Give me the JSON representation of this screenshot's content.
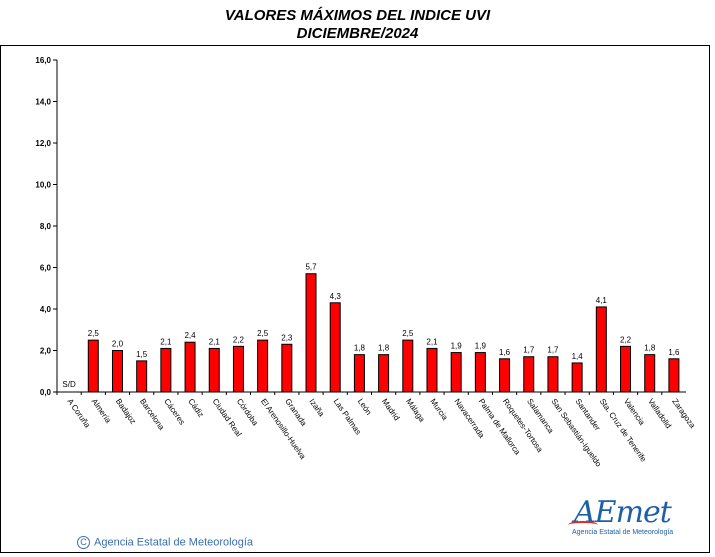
{
  "header": {
    "title_line1": "VALORES MÁXIMOS DEL INDICE UVI",
    "title_line2": "DICIEMBRE/2024"
  },
  "footer": {
    "copyright_symbol": "C",
    "agency": "Agencia Estatal de Meteorología",
    "logo_text": "AEmet",
    "logo_subtitle": "Agencia Estatal de Meteorología"
  },
  "chart_data": {
    "type": "bar",
    "title": "VALORES MÁXIMOS DEL INDICE UVI DICIEMBRE/2024",
    "xlabel": "",
    "ylabel": "",
    "ylim": [
      0,
      16
    ],
    "yticks": [
      "0,0",
      "2,0",
      "4,0",
      "6,0",
      "8,0",
      "10,0",
      "12,0",
      "14,0",
      "16,0"
    ],
    "grid": false,
    "bar_color": "#ff0000",
    "categories": [
      "A Coruña",
      "Almería",
      "Badajoz",
      "Barcelona",
      "Cáceres",
      "Cádiz",
      "Ciudad Real",
      "Córdoba",
      "El Arenosillo-Huelva",
      "Granada",
      "Izaña",
      "Las Palmas",
      "León",
      "Madrid",
      "Málaga",
      "Murcia",
      "Navacerrada",
      "Palma de Mallorca",
      "Roquetes-Tortosa",
      "Salamanca",
      "San Sebastián-Igueldo",
      "Santander",
      "Sta. Cruz de Tenerife",
      "Valencia",
      "Valladolid",
      "Zaragoza"
    ],
    "values": [
      null,
      2.5,
      2.0,
      1.5,
      2.1,
      2.4,
      2.1,
      2.2,
      2.5,
      2.3,
      5.7,
      4.3,
      1.8,
      1.8,
      2.5,
      2.1,
      1.9,
      1.9,
      1.6,
      1.7,
      1.7,
      1.4,
      4.1,
      2.2,
      1.8,
      1.6
    ],
    "labels": [
      "S/D",
      "2,5",
      "2,0",
      "1,5",
      "2,1",
      "2,4",
      "2,1",
      "2,2",
      "2,5",
      "2,3",
      "5,7",
      "4,3",
      "1,8",
      "1,8",
      "2,5",
      "2,1",
      "1,9",
      "1,9",
      "1,6",
      "1,7",
      "1,7",
      "1,4",
      "4,1",
      "2,2",
      "1,8",
      "1,6"
    ]
  }
}
